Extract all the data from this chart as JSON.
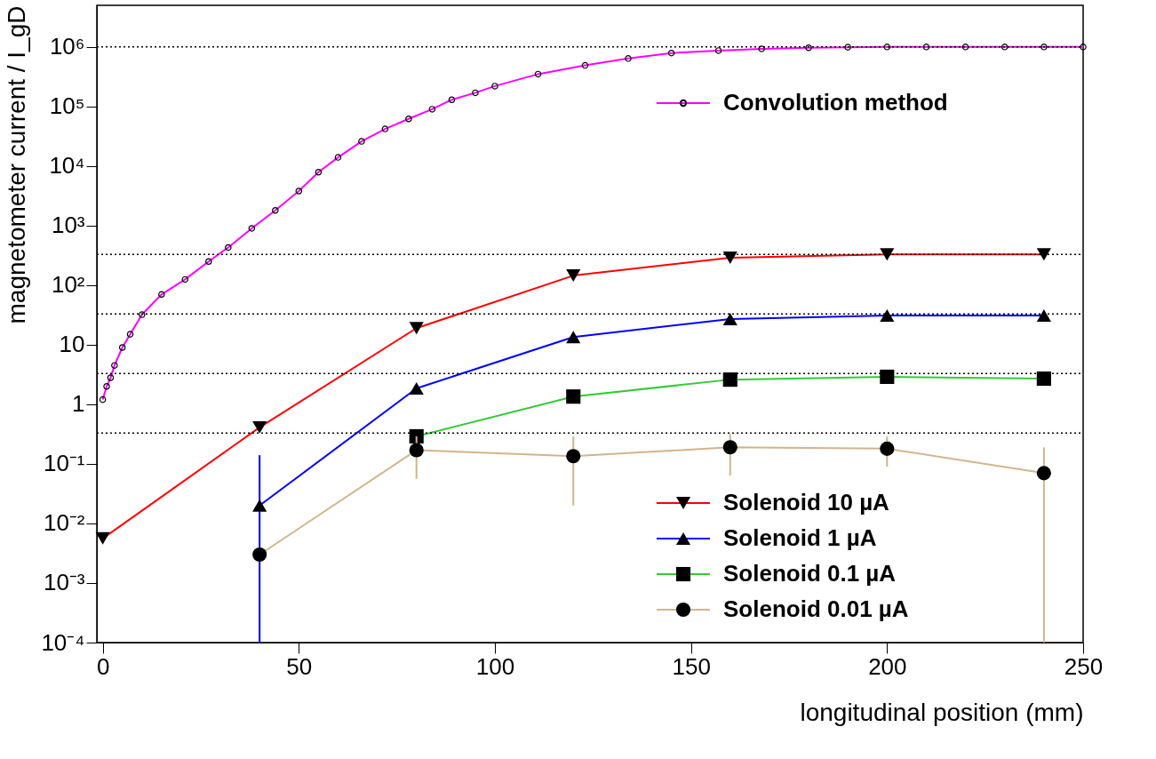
{
  "chart_data": {
    "type": "line",
    "xlabel": "longitudinal position (mm)",
    "ylabel": "magnetometer current / I_gD",
    "xlim": [
      -1.5,
      250
    ],
    "xticks": [
      0,
      50,
      100,
      150,
      200,
      250
    ],
    "ylim": [
      0.0001,
      5000000
    ],
    "log": "y",
    "yticks": [
      {
        "value": 0.0001,
        "label": "10⁻⁴"
      },
      {
        "value": 0.001,
        "label": "10⁻³"
      },
      {
        "value": 0.01,
        "label": "10⁻²"
      },
      {
        "value": 0.1,
        "label": "10⁻¹"
      },
      1,
      10,
      {
        "value": 100,
        "label": "10²"
      },
      {
        "value": 1000,
        "label": "10³"
      },
      {
        "value": 10000,
        "label": "10⁴"
      },
      {
        "value": 100000,
        "label": "10⁵"
      },
      {
        "value": 1000000,
        "label": "10⁶"
      }
    ],
    "grid": false,
    "legend": "right",
    "line_style": "solid",
    "ref_lines": [
      {
        "axis": "y",
        "value": 1000000,
        "color": "#000000",
        "line_style": "dotted"
      },
      {
        "axis": "y",
        "value": 330,
        "color": "#000000",
        "line_style": "dotted"
      },
      {
        "axis": "y",
        "value": 33,
        "color": "#000000",
        "line_style": "dotted"
      },
      {
        "axis": "y",
        "value": 3.3,
        "color": "#000000",
        "line_style": "dotted"
      },
      {
        "axis": "y",
        "value": 0.33,
        "color": "#000000",
        "line_style": "dotted"
      }
    ],
    "series": [
      {
        "name": "Convolution method",
        "color": "#ff00ff",
        "marker": "circle",
        "x": [
          0,
          1,
          2,
          3,
          5,
          7,
          10,
          15,
          21,
          27,
          32,
          38,
          44,
          50,
          55,
          60,
          66,
          72,
          78,
          84,
          89,
          95,
          100,
          111,
          123,
          134,
          145,
          157,
          168,
          180,
          190,
          200,
          210,
          220,
          230,
          240,
          250
        ],
        "values": [
          1.2,
          2.0,
          2.8,
          4.5,
          9,
          15,
          32,
          70,
          125,
          250,
          430,
          900,
          1800,
          3800,
          7900,
          14000,
          26000,
          42000,
          62000,
          90000,
          130000,
          170000,
          220000,
          350000,
          490000,
          640000,
          790000,
          870000,
          930000,
          970000,
          990000,
          1000000,
          1000000,
          1000000,
          1000000,
          1000000,
          1000000
        ]
      },
      {
        "name": "Solenoid 10 µA",
        "color": "#ff0000",
        "marker": "triangle-down",
        "x": [
          0,
          40,
          80,
          120,
          160,
          200,
          240
        ],
        "values": [
          0.0056,
          0.41,
          19,
          145,
          290,
          330,
          330
        ]
      },
      {
        "name": "Solenoid 1 µA",
        "color": "#0000ff",
        "marker": "triangle",
        "x": [
          40,
          80,
          120,
          160,
          200,
          240
        ],
        "values": [
          0.02,
          1.85,
          13.5,
          27,
          31,
          31
        ],
        "errors": [
          [
            0.0001,
            0.14
          ],
          null,
          null,
          null,
          null,
          null
        ]
      },
      {
        "name": "Solenoid 0.1 µA",
        "color": "#33cc33",
        "marker": "square",
        "x": [
          80,
          120,
          160,
          200,
          240
        ],
        "values": [
          0.29,
          1.35,
          2.6,
          2.9,
          2.7
        ]
      },
      {
        "name": "Solenoid 0.01 µA",
        "color": "#d2b48c",
        "marker": "circle",
        "x": [
          40,
          80,
          120,
          160,
          200,
          240
        ],
        "values": [
          0.003,
          0.17,
          0.135,
          0.19,
          0.18,
          0.07
        ],
        "errors": [
          null,
          [
            0.056,
            0.29
          ],
          [
            0.02,
            0.29
          ],
          [
            0.064,
            0.32
          ],
          [
            0.09,
            0.29
          ],
          [
            0.0001,
            0.19
          ]
        ]
      }
    ]
  }
}
